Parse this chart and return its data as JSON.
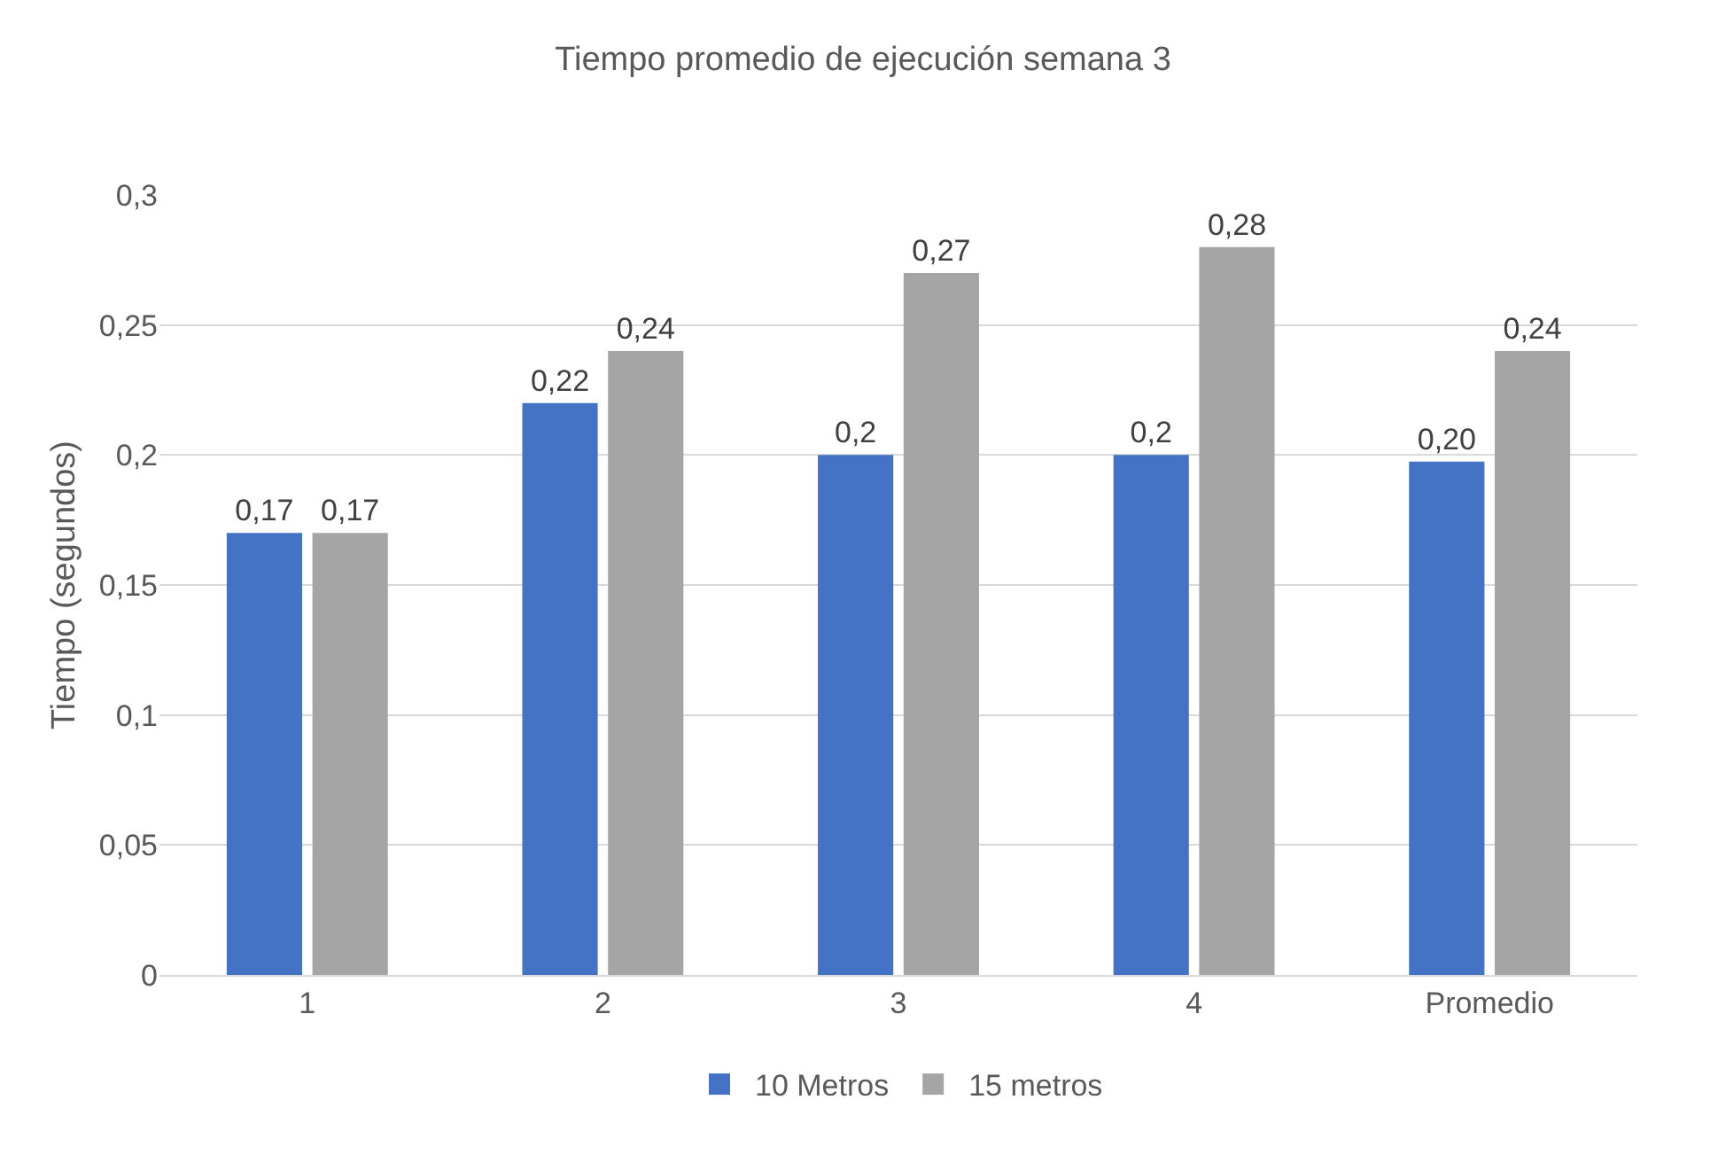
{
  "chart_data": {
    "type": "bar",
    "title": "Tiempo promedio de ejecución semana 3",
    "ylabel": "Tiempo (segundos)",
    "categories": [
      "1",
      "2",
      "3",
      "4",
      "Promedio"
    ],
    "series": [
      {
        "name": "10 Metros",
        "color": "#4472c4",
        "values": [
          0.17,
          0.22,
          0.2,
          0.2,
          0.1975
        ],
        "value_labels": [
          "0,17",
          "0,22",
          "0,2",
          "0,2",
          "0,20"
        ]
      },
      {
        "name": "15 metros",
        "color": "#a5a5a5",
        "values": [
          0.17,
          0.24,
          0.27,
          0.28,
          0.24
        ],
        "value_labels": [
          "0,17",
          "0,24",
          "0,27",
          "0,28",
          "0,24"
        ]
      }
    ],
    "ylim": [
      0,
      0.3
    ],
    "yticks": [
      {
        "value": 0,
        "label": "0"
      },
      {
        "value": 0.05,
        "label": "0,05"
      },
      {
        "value": 0.1,
        "label": "0,1"
      },
      {
        "value": 0.15,
        "label": "0,15"
      },
      {
        "value": 0.2,
        "label": "0,2"
      },
      {
        "value": 0.25,
        "label": "0,25"
      },
      {
        "value": 0.3,
        "label": "0,3"
      }
    ],
    "grid": "y",
    "legend": "bottom"
  }
}
